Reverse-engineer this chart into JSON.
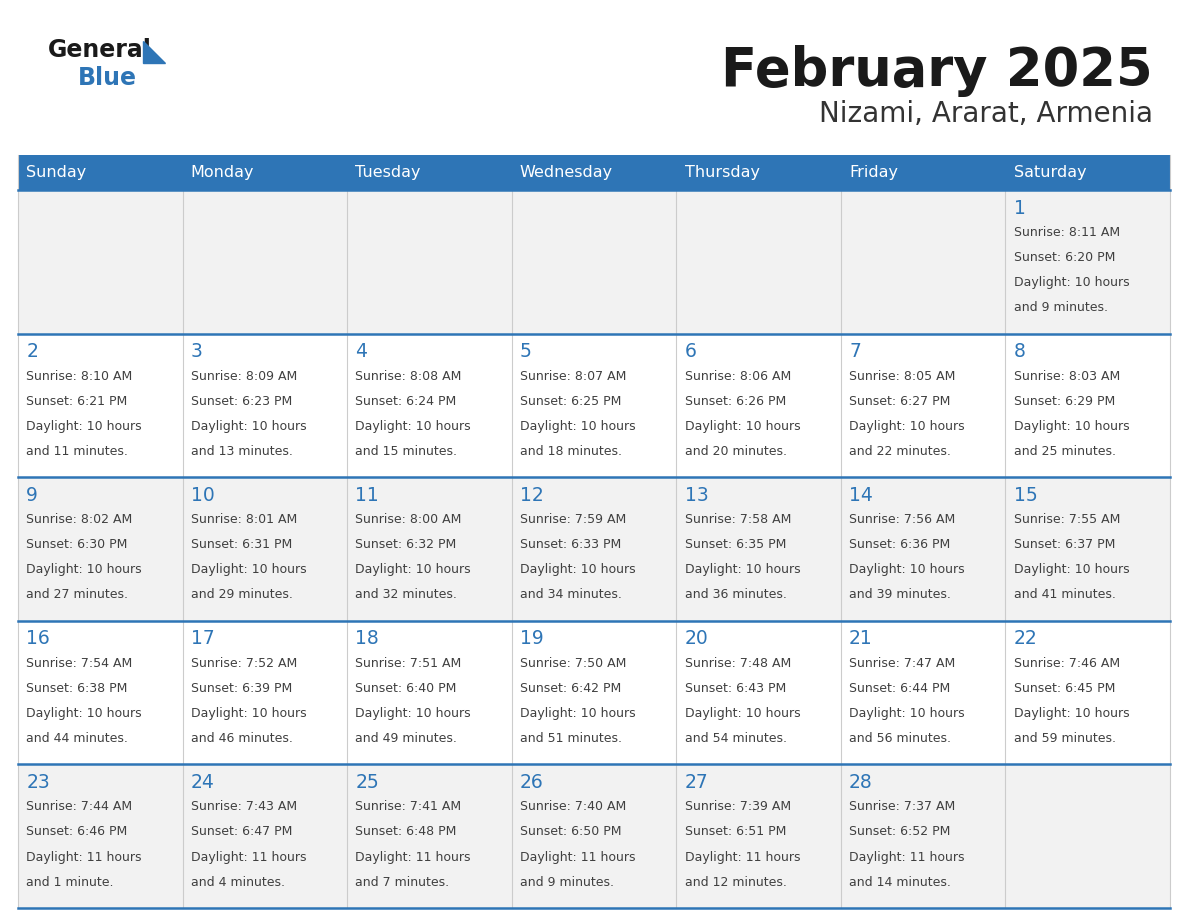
{
  "title": "February 2025",
  "subtitle": "Nizami, Ararat, Armenia",
  "days_of_week": [
    "Sunday",
    "Monday",
    "Tuesday",
    "Wednesday",
    "Thursday",
    "Friday",
    "Saturday"
  ],
  "header_bg": "#2E75B6",
  "header_text": "#FFFFFF",
  "cell_bg_even": "#F2F2F2",
  "cell_bg_odd": "#FFFFFF",
  "cell_border_color": "#2E75B6",
  "day_number_color": "#2E75B6",
  "detail_color": "#404040",
  "title_color": "#1a1a1a",
  "subtitle_color": "#333333",
  "logo_black": "#1a1a1a",
  "logo_blue": "#2E75B6",
  "calendar_data": [
    [
      null,
      null,
      null,
      null,
      null,
      null,
      {
        "day": "1",
        "sunrise": "8:11 AM",
        "sunset": "6:20 PM",
        "daylight1": "10 hours",
        "daylight2": "and 9 minutes."
      }
    ],
    [
      {
        "day": "2",
        "sunrise": "8:10 AM",
        "sunset": "6:21 PM",
        "daylight1": "10 hours",
        "daylight2": "and 11 minutes."
      },
      {
        "day": "3",
        "sunrise": "8:09 AM",
        "sunset": "6:23 PM",
        "daylight1": "10 hours",
        "daylight2": "and 13 minutes."
      },
      {
        "day": "4",
        "sunrise": "8:08 AM",
        "sunset": "6:24 PM",
        "daylight1": "10 hours",
        "daylight2": "and 15 minutes."
      },
      {
        "day": "5",
        "sunrise": "8:07 AM",
        "sunset": "6:25 PM",
        "daylight1": "10 hours",
        "daylight2": "and 18 minutes."
      },
      {
        "day": "6",
        "sunrise": "8:06 AM",
        "sunset": "6:26 PM",
        "daylight1": "10 hours",
        "daylight2": "and 20 minutes."
      },
      {
        "day": "7",
        "sunrise": "8:05 AM",
        "sunset": "6:27 PM",
        "daylight1": "10 hours",
        "daylight2": "and 22 minutes."
      },
      {
        "day": "8",
        "sunrise": "8:03 AM",
        "sunset": "6:29 PM",
        "daylight1": "10 hours",
        "daylight2": "and 25 minutes."
      }
    ],
    [
      {
        "day": "9",
        "sunrise": "8:02 AM",
        "sunset": "6:30 PM",
        "daylight1": "10 hours",
        "daylight2": "and 27 minutes."
      },
      {
        "day": "10",
        "sunrise": "8:01 AM",
        "sunset": "6:31 PM",
        "daylight1": "10 hours",
        "daylight2": "and 29 minutes."
      },
      {
        "day": "11",
        "sunrise": "8:00 AM",
        "sunset": "6:32 PM",
        "daylight1": "10 hours",
        "daylight2": "and 32 minutes."
      },
      {
        "day": "12",
        "sunrise": "7:59 AM",
        "sunset": "6:33 PM",
        "daylight1": "10 hours",
        "daylight2": "and 34 minutes."
      },
      {
        "day": "13",
        "sunrise": "7:58 AM",
        "sunset": "6:35 PM",
        "daylight1": "10 hours",
        "daylight2": "and 36 minutes."
      },
      {
        "day": "14",
        "sunrise": "7:56 AM",
        "sunset": "6:36 PM",
        "daylight1": "10 hours",
        "daylight2": "and 39 minutes."
      },
      {
        "day": "15",
        "sunrise": "7:55 AM",
        "sunset": "6:37 PM",
        "daylight1": "10 hours",
        "daylight2": "and 41 minutes."
      }
    ],
    [
      {
        "day": "16",
        "sunrise": "7:54 AM",
        "sunset": "6:38 PM",
        "daylight1": "10 hours",
        "daylight2": "and 44 minutes."
      },
      {
        "day": "17",
        "sunrise": "7:52 AM",
        "sunset": "6:39 PM",
        "daylight1": "10 hours",
        "daylight2": "and 46 minutes."
      },
      {
        "day": "18",
        "sunrise": "7:51 AM",
        "sunset": "6:40 PM",
        "daylight1": "10 hours",
        "daylight2": "and 49 minutes."
      },
      {
        "day": "19",
        "sunrise": "7:50 AM",
        "sunset": "6:42 PM",
        "daylight1": "10 hours",
        "daylight2": "and 51 minutes."
      },
      {
        "day": "20",
        "sunrise": "7:48 AM",
        "sunset": "6:43 PM",
        "daylight1": "10 hours",
        "daylight2": "and 54 minutes."
      },
      {
        "day": "21",
        "sunrise": "7:47 AM",
        "sunset": "6:44 PM",
        "daylight1": "10 hours",
        "daylight2": "and 56 minutes."
      },
      {
        "day": "22",
        "sunrise": "7:46 AM",
        "sunset": "6:45 PM",
        "daylight1": "10 hours",
        "daylight2": "and 59 minutes."
      }
    ],
    [
      {
        "day": "23",
        "sunrise": "7:44 AM",
        "sunset": "6:46 PM",
        "daylight1": "11 hours",
        "daylight2": "and 1 minute."
      },
      {
        "day": "24",
        "sunrise": "7:43 AM",
        "sunset": "6:47 PM",
        "daylight1": "11 hours",
        "daylight2": "and 4 minutes."
      },
      {
        "day": "25",
        "sunrise": "7:41 AM",
        "sunset": "6:48 PM",
        "daylight1": "11 hours",
        "daylight2": "and 7 minutes."
      },
      {
        "day": "26",
        "sunrise": "7:40 AM",
        "sunset": "6:50 PM",
        "daylight1": "11 hours",
        "daylight2": "and 9 minutes."
      },
      {
        "day": "27",
        "sunrise": "7:39 AM",
        "sunset": "6:51 PM",
        "daylight1": "11 hours",
        "daylight2": "and 12 minutes."
      },
      {
        "day": "28",
        "sunrise": "7:37 AM",
        "sunset": "6:52 PM",
        "daylight1": "11 hours",
        "daylight2": "and 14 minutes."
      },
      null
    ]
  ]
}
